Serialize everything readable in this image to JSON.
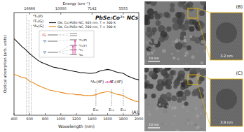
{
  "chart_data": {
    "type": "line",
    "title": "PbSe:Co²⁺ NCs",
    "panel_label": "(A)",
    "xlabel": "Wavelength (nm)",
    "ylabel": "Optical absorption (arb. units)",
    "x2label": "Energy (cm⁻¹)",
    "x": [
      400,
      450,
      500,
      550,
      600,
      650,
      700,
      750,
      800,
      850,
      900,
      950,
      1000,
      1050,
      1100,
      1150,
      1200,
      1250,
      1300,
      1350,
      1400,
      1450,
      1500,
      1550,
      1600,
      1650,
      1700,
      1750,
      1800,
      1850,
      1900,
      1950,
      2000
    ],
    "series": [
      {
        "name": "OA, Co:PbSe NC, 505 nm, T = 300 K",
        "color": "#111111",
        "values": [
          0.97,
          0.92,
          0.87,
          0.83,
          0.78,
          0.74,
          0.7,
          0.67,
          0.65,
          0.63,
          0.61,
          0.6,
          0.59,
          0.58,
          0.57,
          0.56,
          0.55,
          0.54,
          0.54,
          0.53,
          0.53,
          0.54,
          0.56,
          0.57,
          0.58,
          0.57,
          0.55,
          0.54,
          0.53,
          0.5,
          0.48,
          0.46,
          0.45
        ]
      },
      {
        "name": "OA, Co:PbSe NC, 200 nm, T = 300 K",
        "color": "#e8891c",
        "values": [
          0.52,
          0.5,
          0.48,
          0.47,
          0.43,
          0.41,
          0.38,
          0.36,
          0.34,
          0.32,
          0.31,
          0.3,
          0.29,
          0.28,
          0.27,
          0.27,
          0.26,
          0.26,
          0.25,
          0.25,
          0.25,
          0.26,
          0.28,
          0.29,
          0.3,
          0.29,
          0.27,
          0.26,
          0.25,
          0.22,
          0.2,
          0.18,
          0.17
        ]
      }
    ],
    "xlim": [
      400,
      2000
    ],
    "xticks": [
      400,
      600,
      800,
      1000,
      1200,
      1400,
      1600,
      1800,
      2000
    ],
    "x2ticks": [
      {
        "value": 600,
        "label": "16666"
      },
      {
        "value": 1000,
        "label": "10000"
      },
      {
        "value": 1400,
        "label": "7142"
      },
      {
        "value": 1800,
        "label": "5555"
      }
    ],
    "ylim": [
      0,
      1.3
    ],
    "tick_labels": "x",
    "annotations": [
      {
        "x": 560,
        "label": "⁴T₁(P)"
      },
      {
        "x": 590,
        "label": "²T₁(G)"
      },
      {
        "x": 620,
        "label": "⁴A₂(G)"
      }
    ],
    "markers": [
      {
        "x": 1450,
        "label": "E₁₁"
      },
      {
        "x": 1650,
        "label": "E₂₁"
      },
      {
        "x": 1800,
        "label": "E₃₁"
      }
    ],
    "transition": "⁴A₂(4F) → ⁴T₁(4F)",
    "inset": {
      "free_ion": [
        "²G",
        "⁴P",
        "⁴F"
      ],
      "crystal_field": [
        "⁴T₁(P)",
        "⁴T₁(F)",
        "⁴T₂",
        "⁴A₂"
      ]
    }
  },
  "images": [
    {
      "label": "(B)",
      "scale_bar": "10 nm",
      "inset_label": "3.2 nm"
    },
    {
      "label": "(C)",
      "scale_bar": "10 nm",
      "inset_label": "3.9 nm"
    }
  ]
}
